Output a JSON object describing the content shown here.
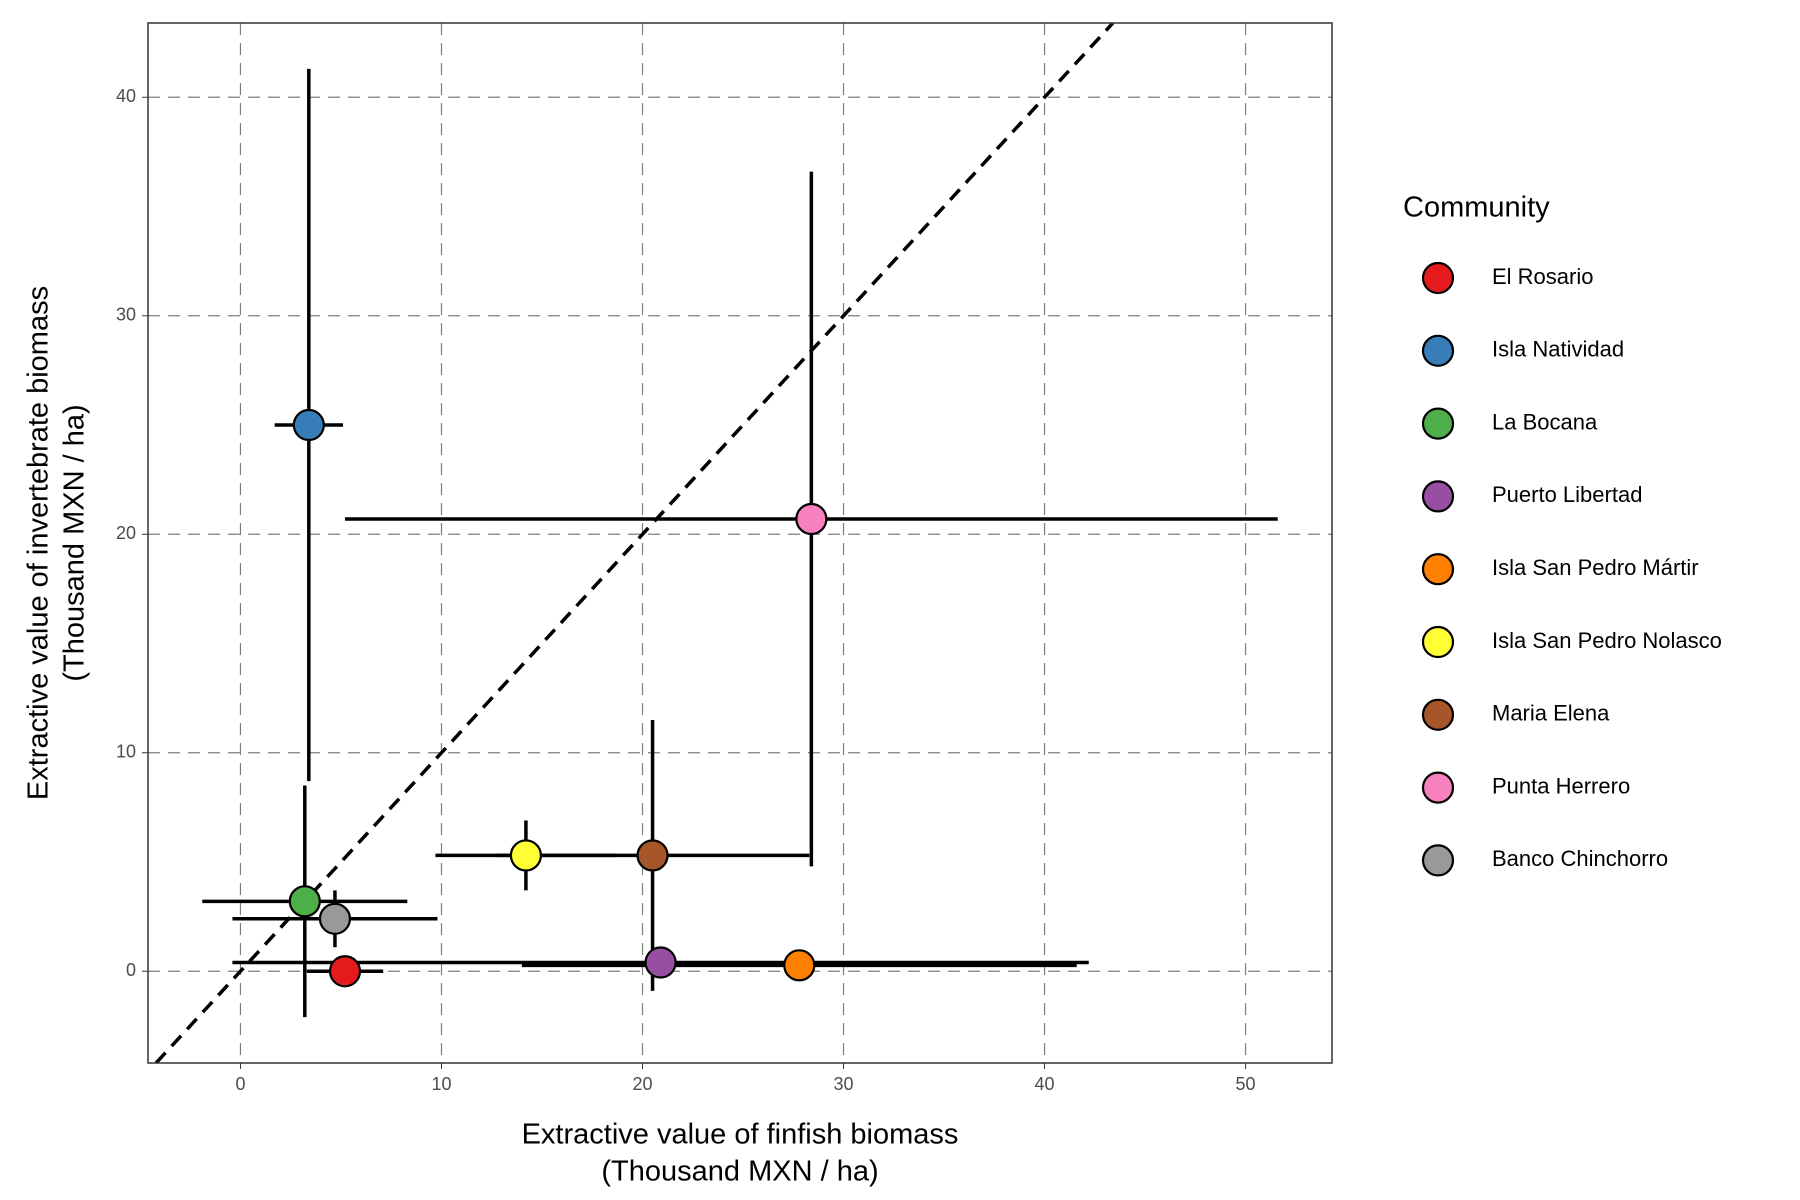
{
  "chart_data": {
    "type": "scatter",
    "xlabel": [
      "Extractive value of finfish biomass",
      "(Thousand MXN / ha)"
    ],
    "ylabel": [
      "Extractive value of invertebrate biomass",
      "(Thousand MXN / ha)"
    ],
    "legend_title": "Community",
    "xlim": [
      -4.6,
      54.3
    ],
    "ylim": [
      -4.2,
      43.4
    ],
    "xticks": [
      0,
      10,
      20,
      30,
      40,
      50
    ],
    "yticks": [
      0,
      10,
      20,
      30,
      40
    ],
    "grid": true,
    "identity_line": true,
    "legend": "right",
    "series": [
      {
        "name": "El Rosario",
        "color": "#e41a1c",
        "x": 5.2,
        "y": 0.0,
        "xerr": 1.9,
        "yerr": 0
      },
      {
        "name": "Isla Natividad",
        "color": "#377eb8",
        "x": 3.4,
        "y": 25.0,
        "xerr": 1.7,
        "yerr": 16.3
      },
      {
        "name": "La Bocana",
        "color": "#4daf4a",
        "x": 3.2,
        "y": 3.2,
        "xerr": 5.1,
        "yerr": 5.3
      },
      {
        "name": "Puerto Libertad",
        "color": "#984ea3",
        "x": 20.9,
        "y": 0.4,
        "xerr": 21.3,
        "yerr": 0
      },
      {
        "name": "Isla San Pedro Mártir",
        "color": "#ff7f00",
        "x": 27.8,
        "y": 0.27,
        "xerr": 13.8,
        "yerr": 0
      },
      {
        "name": "Isla San Pedro Nolasco",
        "color": "#ffff33",
        "x": 14.2,
        "y": 5.3,
        "xerr": 4.5,
        "yerr": 1.6
      },
      {
        "name": "Maria Elena",
        "color": "#a65628",
        "x": 20.5,
        "y": 5.3,
        "xerr": 7.8,
        "yerr": 6.2
      },
      {
        "name": "Punta Herrero",
        "color": "#f781bf",
        "x": 28.4,
        "y": 20.7,
        "xerr": 23.2,
        "yerr": 15.9
      },
      {
        "name": "Banco Chinchorro",
        "color": "#999999",
        "x": 4.7,
        "y": 2.4,
        "xerr": 5.1,
        "yerr": 1.3
      }
    ]
  }
}
